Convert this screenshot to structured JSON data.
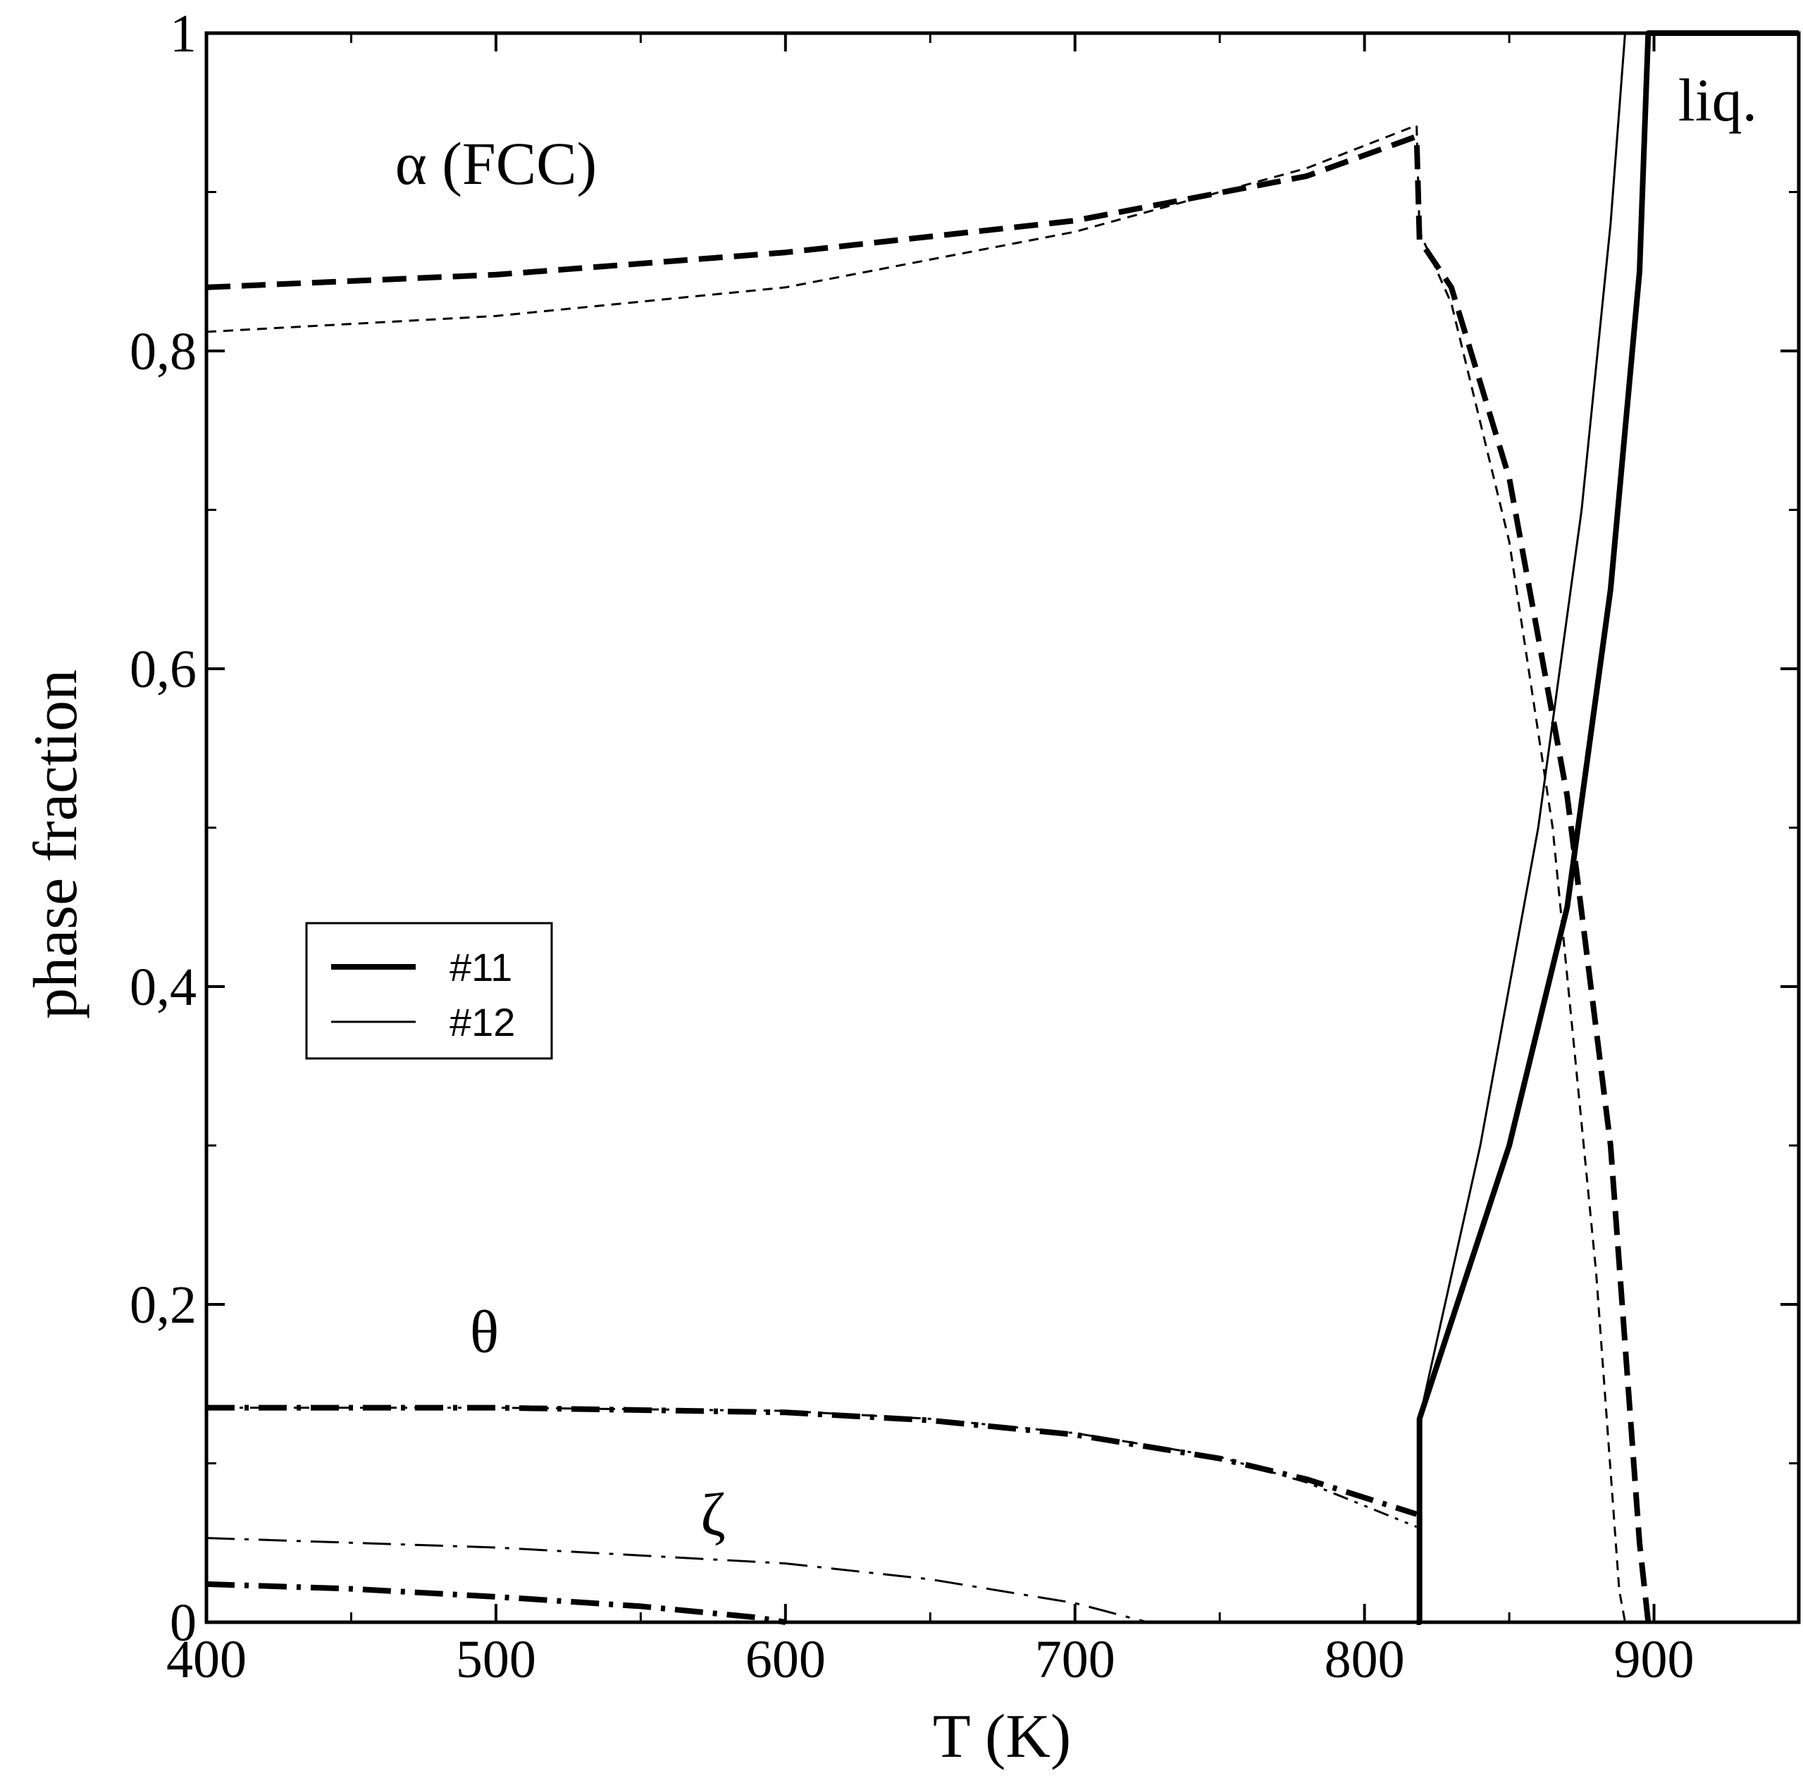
{
  "chart_data": {
    "type": "line",
    "title": "",
    "xlabel": "T (K)",
    "ylabel": "phase fraction",
    "xlim": [
      400,
      950
    ],
    "ylim": [
      0,
      1
    ],
    "x_ticks": [
      400,
      500,
      600,
      700,
      800,
      900
    ],
    "x_tick_labels": [
      "400",
      "500",
      "600",
      "700",
      "800",
      "900"
    ],
    "y_ticks": [
      0,
      0.2,
      0.4,
      0.6,
      0.8,
      1
    ],
    "y_tick_labels": [
      "0",
      "0,2",
      "0,4",
      "0,6",
      "0,8",
      "1"
    ],
    "grid": false,
    "legend": {
      "placement": "center-left",
      "entries": [
        {
          "label": "#11",
          "style": "thick"
        },
        {
          "label": "#12",
          "style": "thin"
        }
      ]
    },
    "annotations": [
      {
        "text": "α  (FCC)",
        "x": 500,
        "y": 0.905
      },
      {
        "text": "liq.",
        "x": 922,
        "y": 0.945
      },
      {
        "text": "θ",
        "x": 496,
        "y": 0.17
      },
      {
        "text": "ζ",
        "x": 575,
        "y": 0.055
      }
    ],
    "series": [
      {
        "phase": "alpha",
        "dataset": "#11",
        "dash": "long",
        "x": [
          400,
          500,
          600,
          700,
          780,
          818,
          819,
          830,
          850,
          870,
          885,
          895,
          898
        ],
        "y": [
          0.84,
          0.848,
          0.862,
          0.882,
          0.91,
          0.935,
          0.87,
          0.84,
          0.72,
          0.52,
          0.3,
          0.05,
          0
        ]
      },
      {
        "phase": "alpha",
        "dataset": "#12",
        "dash": "short",
        "x": [
          400,
          500,
          600,
          700,
          780,
          818,
          819,
          830,
          850,
          865,
          880,
          888,
          890
        ],
        "y": [
          0.812,
          0.822,
          0.84,
          0.875,
          0.915,
          0.942,
          0.875,
          0.83,
          0.68,
          0.5,
          0.22,
          0.02,
          0
        ]
      },
      {
        "phase": "liquid",
        "dataset": "#11",
        "dash": "solid",
        "x": [
          818,
          819,
          819,
          850,
          870,
          885,
          895,
          898,
          900,
          950
        ],
        "y": [
          0,
          0,
          0.128,
          0.3,
          0.45,
          0.65,
          0.85,
          1,
          1,
          1
        ]
      },
      {
        "phase": "liquid",
        "dataset": "#12",
        "dash": "solid",
        "x": [
          818,
          819,
          819,
          840,
          860,
          875,
          885,
          890
        ],
        "y": [
          0,
          0,
          0.128,
          0.3,
          0.5,
          0.7,
          0.88,
          1
        ]
      },
      {
        "phase": "theta",
        "dataset": "#11",
        "dash": "dash-dot",
        "x": [
          400,
          500,
          600,
          650,
          700,
          750,
          780,
          818
        ],
        "y": [
          0.135,
          0.135,
          0.132,
          0.127,
          0.118,
          0.103,
          0.09,
          0.068
        ]
      },
      {
        "phase": "theta",
        "dataset": "#12",
        "dash": "dash-dot-dot",
        "x": [
          400,
          500,
          600,
          650,
          700,
          750,
          780,
          818
        ],
        "y": [
          0.135,
          0.135,
          0.133,
          0.128,
          0.119,
          0.104,
          0.088,
          0.06
        ]
      },
      {
        "phase": "zeta",
        "dataset": "#11",
        "dash": "dash-dot",
        "x": [
          400,
          450,
          500,
          550,
          590,
          600
        ],
        "y": [
          0.024,
          0.021,
          0.016,
          0.01,
          0.003,
          0
        ]
      },
      {
        "phase": "zeta",
        "dataset": "#12",
        "dash": "dash-dot",
        "x": [
          400,
          500,
          600,
          650,
          700,
          725
        ],
        "y": [
          0.053,
          0.047,
          0.037,
          0.027,
          0.012,
          0
        ]
      }
    ]
  }
}
